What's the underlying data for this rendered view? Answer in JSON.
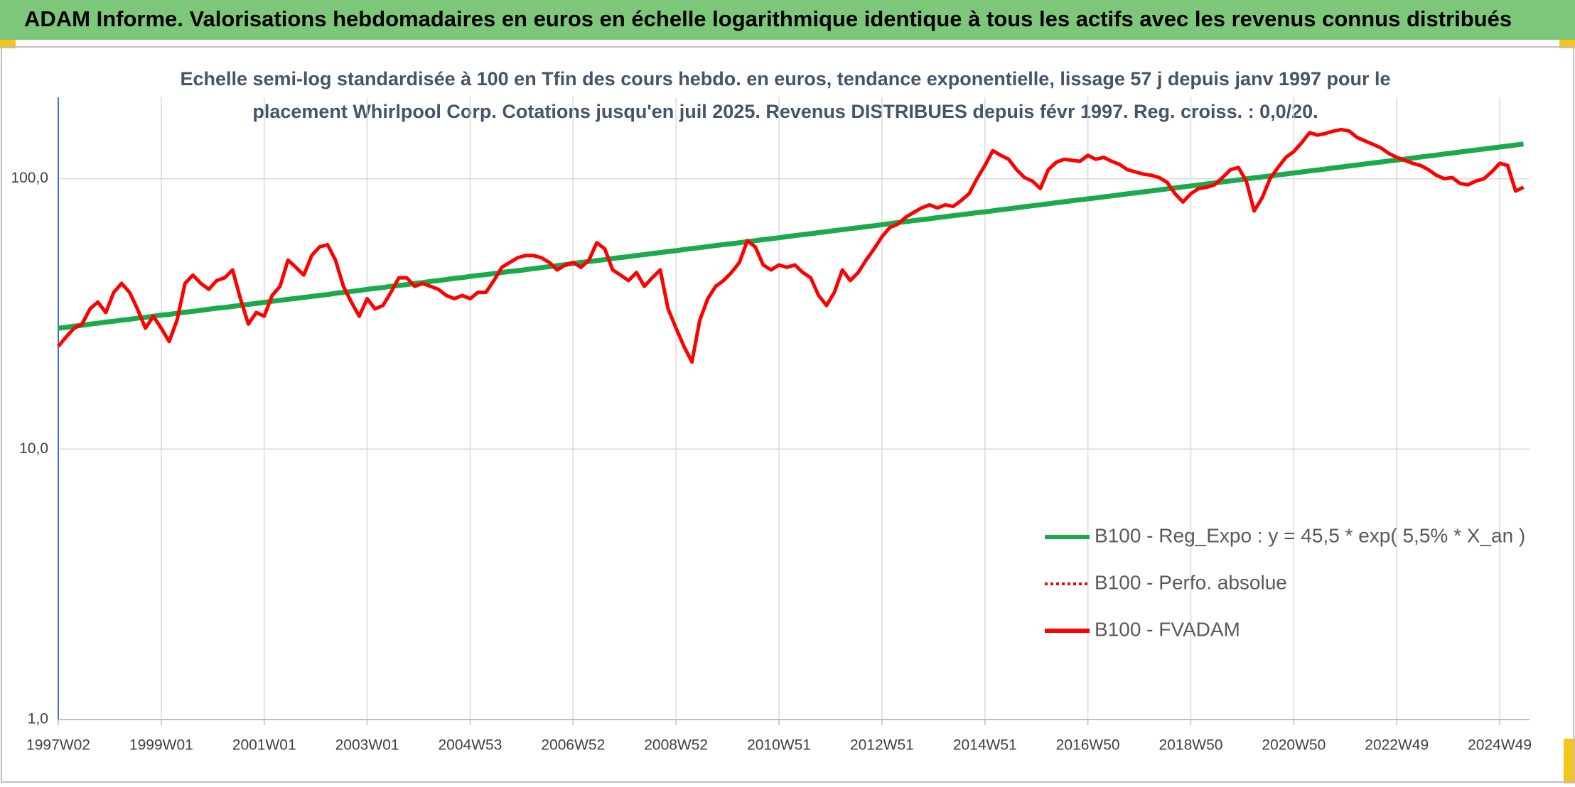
{
  "chart_data": {
    "type": "line",
    "title": "ADAM Informe. Valorisations hebdomadaires en euros en échelle logarithmique identique à tous les actifs avec les revenus connus distribués",
    "subtitle": [
      "Echelle semi-log standardisée à 100 en Tfin des cours hebdo. en euros, tendance exponentielle, lissage 57 j depuis janv 1997 pour le",
      "placement Whirlpool Corp. Cotations jusqu'en juil 2025. Revenus DISTRIBUES depuis févr 1997. Reg. croiss. : 0,0/20."
    ],
    "log_scale": true,
    "grid": true,
    "ylim": [
      1,
      200
    ],
    "yticks": [
      {
        "value": 1,
        "label": "1,0"
      },
      {
        "value": 10,
        "label": "10,0"
      },
      {
        "value": 100,
        "label": "100,0"
      }
    ],
    "categories": [
      "1997W02",
      null,
      null,
      null,
      null,
      null,
      null,
      null,
      null,
      null,
      null,
      null,
      null,
      "1999W01",
      null,
      null,
      null,
      null,
      null,
      null,
      null,
      null,
      null,
      null,
      null,
      null,
      "2001W01",
      null,
      null,
      null,
      null,
      null,
      null,
      null,
      null,
      null,
      null,
      null,
      null,
      "2003W01",
      null,
      null,
      null,
      null,
      null,
      null,
      null,
      null,
      null,
      null,
      null,
      null,
      "2004W53",
      null,
      null,
      null,
      null,
      null,
      null,
      null,
      null,
      null,
      null,
      null,
      null,
      "2006W52",
      null,
      null,
      null,
      null,
      null,
      null,
      null,
      null,
      null,
      null,
      null,
      null,
      "2008W52",
      null,
      null,
      null,
      null,
      null,
      null,
      null,
      null,
      null,
      null,
      null,
      null,
      "2010W51",
      null,
      null,
      null,
      null,
      null,
      null,
      null,
      null,
      null,
      null,
      null,
      null,
      "2012W51",
      null,
      null,
      null,
      null,
      null,
      null,
      null,
      null,
      null,
      null,
      null,
      null,
      "2014W51",
      null,
      null,
      null,
      null,
      null,
      null,
      null,
      null,
      null,
      null,
      null,
      null,
      "2016W50",
      null,
      null,
      null,
      null,
      null,
      null,
      null,
      null,
      null,
      null,
      null,
      null,
      "2018W50",
      null,
      null,
      null,
      null,
      null,
      null,
      null,
      null,
      null,
      null,
      null,
      null,
      "2020W50",
      null,
      null,
      null,
      null,
      null,
      null,
      null,
      null,
      null,
      null,
      null,
      null,
      "2022W49",
      null,
      null,
      null,
      null,
      null,
      null,
      null,
      null,
      null,
      null,
      null,
      null,
      "2024W49",
      null,
      null,
      null
    ],
    "series": [
      {
        "name": "B100 - Reg_Expo : y = 45,5 * exp( 5,5% *  X_an )",
        "color": "#1aaa4b",
        "dash": "solid",
        "values": [
          28.0,
          28.2,
          28.5,
          28.7,
          29.0,
          29.2,
          29.5,
          29.7,
          30.0,
          30.2,
          30.5,
          30.7,
          31.0,
          31.3,
          31.5,
          31.8,
          32.1,
          32.3,
          32.6,
          32.9,
          33.2,
          33.4,
          33.7,
          34.0,
          34.3,
          34.6,
          34.9,
          35.2,
          35.5,
          35.8,
          36.1,
          36.4,
          36.7,
          37.0,
          37.3,
          37.7,
          38.0,
          38.3,
          38.6,
          39.0,
          39.3,
          39.6,
          40.0,
          40.3,
          40.6,
          41.0,
          41.3,
          41.7,
          42.0,
          42.4,
          42.8,
          43.1,
          43.5,
          43.9,
          44.2,
          44.6,
          45.0,
          45.4,
          45.7,
          46.1,
          46.5,
          46.9,
          47.3,
          47.7,
          48.1,
          48.6,
          49.0,
          49.4,
          49.8,
          50.2,
          50.7,
          51.1,
          51.5,
          52.0,
          52.4,
          52.9,
          53.3,
          53.8,
          54.2,
          54.7,
          55.2,
          55.6,
          56.1,
          56.6,
          57.1,
          57.5,
          58.0,
          58.5,
          59.0,
          59.5,
          60.0,
          60.5,
          61.1,
          61.6,
          62.1,
          62.6,
          63.2,
          63.7,
          64.3,
          64.8,
          65.4,
          65.9,
          66.5,
          67.0,
          67.6,
          68.2,
          68.8,
          69.4,
          70.0,
          70.5,
          71.1,
          71.8,
          72.4,
          73.0,
          73.6,
          74.2,
          74.9,
          75.4,
          76.1,
          76.8,
          77.4,
          78.1,
          78.8,
          79.4,
          80.1,
          80.8,
          81.5,
          82.2,
          82.9,
          83.6,
          84.2,
          84.9,
          85.7,
          86.4,
          87.1,
          87.9,
          88.6,
          89.4,
          90.1,
          90.9,
          91.7,
          92.5,
          93.3,
          94.0,
          94.8,
          95.6,
          96.5,
          97.3,
          98.1,
          99.0,
          99.8,
          100.7,
          101.5,
          102.4,
          103.3,
          104.1,
          105.0,
          105.9,
          106.8,
          107.7,
          108.6,
          109.6,
          110.5,
          111.5,
          112.4,
          113.4,
          114.4,
          115.3,
          116.3,
          117.2,
          118.2,
          119.2,
          120.3,
          121.3,
          122.3,
          123.4,
          124.4,
          125.5,
          126.6,
          127.7,
          128.8,
          129.9,
          131.0,
          132.1,
          133.2,
          134.4
        ]
      },
      {
        "name": "B100 - Perfo. absolue",
        "color": "#ff0000",
        "dash": "dotted"
      },
      {
        "name": "B100 - FVADAM",
        "color": "#ff0000",
        "dash": "solid",
        "values": [
          24,
          26,
          28,
          29,
          33,
          35,
          32,
          38,
          41,
          38,
          33,
          28,
          31,
          28,
          25,
          30,
          41,
          44,
          41,
          39,
          42,
          43,
          46,
          36,
          29,
          32,
          31,
          37,
          40,
          50,
          47,
          44,
          52,
          56,
          57,
          50,
          40,
          35,
          31,
          36,
          33,
          34,
          38,
          43,
          43,
          40,
          41,
          40,
          39,
          37,
          36,
          37,
          36,
          38,
          38,
          42,
          47,
          49,
          51,
          52,
          52,
          51,
          49,
          46,
          48,
          49,
          47,
          50,
          58,
          55,
          46,
          44,
          42,
          45,
          40,
          43,
          46,
          33,
          28,
          24,
          21,
          30,
          36,
          40,
          42,
          45,
          49,
          59,
          56,
          48,
          46,
          48,
          47,
          48,
          45,
          43,
          37,
          34,
          38,
          46,
          42,
          45,
          50,
          55,
          61,
          66,
          68,
          72,
          75,
          78,
          80,
          78,
          80,
          79,
          83,
          88,
          100,
          112,
          127,
          122,
          118,
          108,
          101,
          98,
          92,
          108,
          115,
          118,
          117,
          116,
          122,
          118,
          120,
          116,
          113,
          108,
          106,
          104,
          103,
          101,
          97,
          88,
          82,
          88,
          92,
          93,
          95,
          101,
          108,
          110,
          98,
          76,
          85,
          100,
          110,
          120,
          126,
          136,
          148,
          145,
          147,
          150,
          152,
          150,
          142,
          138,
          134,
          130,
          124,
          120,
          117,
          114,
          112,
          108,
          103,
          100,
          101,
          96,
          95,
          98,
          100,
          106,
          114,
          112,
          90,
          93
        ]
      }
    ]
  }
}
